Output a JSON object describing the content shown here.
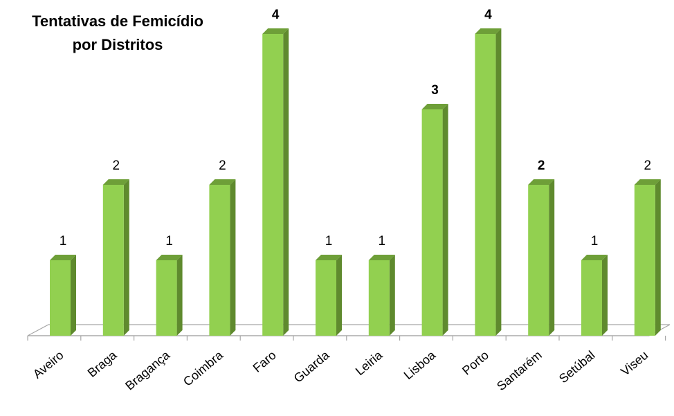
{
  "chart_data": {
    "type": "bar",
    "title_line1": "Tentativas de Femicídio",
    "title_line2": "por Distritos",
    "categories": [
      "Aveiro",
      "Braga",
      "Bragança",
      "Coimbra",
      "Faro",
      "Guarda",
      "Leiria",
      "Lisboa",
      "Porto",
      "Santarém",
      "Setúbal",
      "Viseu"
    ],
    "values": [
      1,
      2,
      1,
      2,
      4,
      1,
      1,
      3,
      4,
      2,
      1,
      2
    ],
    "bold_labels": [
      false,
      false,
      false,
      false,
      true,
      false,
      false,
      true,
      true,
      true,
      false,
      false
    ],
    "ylim": [
      0,
      4
    ],
    "grid": false,
    "legend": "none",
    "colors": {
      "bar_front": "#92d050",
      "bar_side": "#5f8a2e",
      "bar_top": "#6e9f38",
      "floor": "#ffffff",
      "floor_stroke": "#a6a6a6"
    }
  }
}
